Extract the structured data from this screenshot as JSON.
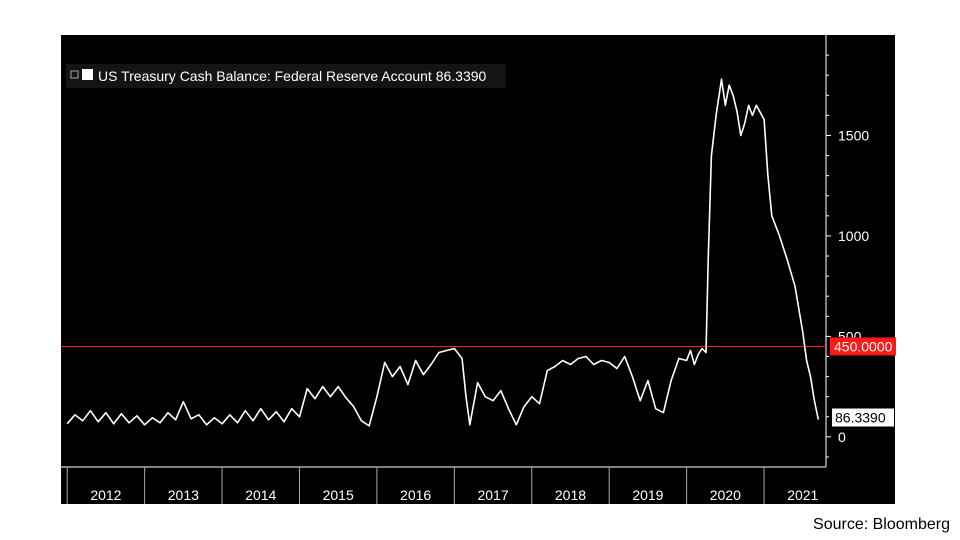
{
  "chart_data": {
    "type": "line",
    "title": "",
    "xlabel": "",
    "ylabel": "",
    "legend": {
      "label": "US Treasury Cash Balance: Federal Reserve Account 86.3390",
      "placement": "top-left"
    },
    "x_tick_labels": [
      "2012",
      "2013",
      "2014",
      "2015",
      "2016",
      "2017",
      "2018",
      "2019",
      "2020",
      "2021"
    ],
    "y_tick_labels": [
      "0",
      "500",
      "1000",
      "1500"
    ],
    "ylim": [
      -150,
      2000
    ],
    "xlim": [
      2011.92,
      2021.8
    ],
    "grid": false,
    "background": "#000000",
    "line_color": "#ffffff",
    "reference_line": {
      "value": 450,
      "label": "450.0000",
      "color": "#ff1a1a"
    },
    "last_value": {
      "value": 86.339,
      "label": "86.3390"
    },
    "series": [
      {
        "name": "US Treasury Cash Balance: Federal Reserve Account",
        "points": [
          [
            2012.0,
            65
          ],
          [
            2012.1,
            110
          ],
          [
            2012.2,
            80
          ],
          [
            2012.3,
            130
          ],
          [
            2012.4,
            75
          ],
          [
            2012.5,
            120
          ],
          [
            2012.6,
            65
          ],
          [
            2012.7,
            115
          ],
          [
            2012.8,
            70
          ],
          [
            2012.9,
            105
          ],
          [
            2013.0,
            60
          ],
          [
            2013.1,
            95
          ],
          [
            2013.2,
            70
          ],
          [
            2013.3,
            120
          ],
          [
            2013.4,
            85
          ],
          [
            2013.5,
            175
          ],
          [
            2013.6,
            90
          ],
          [
            2013.7,
            110
          ],
          [
            2013.8,
            60
          ],
          [
            2013.9,
            95
          ],
          [
            2014.0,
            65
          ],
          [
            2014.1,
            110
          ],
          [
            2014.2,
            70
          ],
          [
            2014.3,
            130
          ],
          [
            2014.4,
            80
          ],
          [
            2014.5,
            140
          ],
          [
            2014.6,
            85
          ],
          [
            2014.7,
            125
          ],
          [
            2014.8,
            75
          ],
          [
            2014.9,
            140
          ],
          [
            2015.0,
            100
          ],
          [
            2015.1,
            240
          ],
          [
            2015.2,
            190
          ],
          [
            2015.3,
            250
          ],
          [
            2015.4,
            200
          ],
          [
            2015.5,
            250
          ],
          [
            2015.6,
            195
          ],
          [
            2015.7,
            150
          ],
          [
            2015.8,
            80
          ],
          [
            2015.9,
            55
          ],
          [
            2016.0,
            200
          ],
          [
            2016.1,
            370
          ],
          [
            2016.2,
            300
          ],
          [
            2016.3,
            350
          ],
          [
            2016.4,
            260
          ],
          [
            2016.5,
            380
          ],
          [
            2016.6,
            310
          ],
          [
            2016.7,
            360
          ],
          [
            2016.8,
            420
          ],
          [
            2016.9,
            430
          ],
          [
            2017.0,
            440
          ],
          [
            2017.1,
            390
          ],
          [
            2017.15,
            200
          ],
          [
            2017.2,
            60
          ],
          [
            2017.3,
            270
          ],
          [
            2017.4,
            200
          ],
          [
            2017.5,
            180
          ],
          [
            2017.6,
            230
          ],
          [
            2017.7,
            140
          ],
          [
            2017.8,
            60
          ],
          [
            2017.9,
            150
          ],
          [
            2018.0,
            200
          ],
          [
            2018.1,
            165
          ],
          [
            2018.2,
            330
          ],
          [
            2018.3,
            350
          ],
          [
            2018.4,
            380
          ],
          [
            2018.5,
            360
          ],
          [
            2018.6,
            390
          ],
          [
            2018.7,
            400
          ],
          [
            2018.8,
            360
          ],
          [
            2018.9,
            380
          ],
          [
            2019.0,
            370
          ],
          [
            2019.1,
            340
          ],
          [
            2019.2,
            400
          ],
          [
            2019.3,
            300
          ],
          [
            2019.4,
            180
          ],
          [
            2019.5,
            280
          ],
          [
            2019.6,
            140
          ],
          [
            2019.7,
            120
          ],
          [
            2019.8,
            280
          ],
          [
            2019.9,
            390
          ],
          [
            2020.0,
            380
          ],
          [
            2020.05,
            430
          ],
          [
            2020.1,
            360
          ],
          [
            2020.15,
            410
          ],
          [
            2020.2,
            440
          ],
          [
            2020.25,
            420
          ],
          [
            2020.28,
            900
          ],
          [
            2020.32,
            1400
          ],
          [
            2020.38,
            1600
          ],
          [
            2020.45,
            1780
          ],
          [
            2020.5,
            1650
          ],
          [
            2020.55,
            1750
          ],
          [
            2020.6,
            1700
          ],
          [
            2020.65,
            1620
          ],
          [
            2020.7,
            1500
          ],
          [
            2020.75,
            1560
          ],
          [
            2020.8,
            1650
          ],
          [
            2020.85,
            1600
          ],
          [
            2020.9,
            1650
          ],
          [
            2021.0,
            1580
          ],
          [
            2021.05,
            1300
          ],
          [
            2021.1,
            1100
          ],
          [
            2021.2,
            1000
          ],
          [
            2021.3,
            880
          ],
          [
            2021.4,
            750
          ],
          [
            2021.5,
            520
          ],
          [
            2021.55,
            380
          ],
          [
            2021.6,
            300
          ],
          [
            2021.65,
            180
          ],
          [
            2021.7,
            86.339
          ]
        ]
      }
    ]
  },
  "source_note": "Source: Bloomberg"
}
